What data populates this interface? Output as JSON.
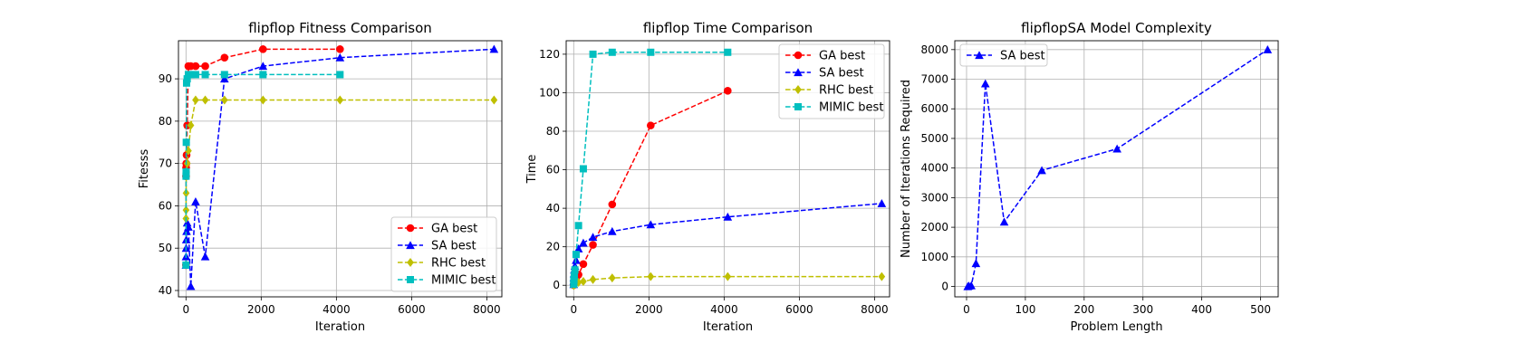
{
  "chart_data": [
    {
      "type": "line",
      "title": "flipflop Fitness Comparison",
      "xlabel": "Iteration",
      "ylabel": "Fitesss",
      "xlim": [
        -200,
        8400
      ],
      "ylim": [
        38.5,
        99
      ],
      "xticks": [
        0,
        2000,
        4000,
        6000,
        8000
      ],
      "yticks": [
        40,
        50,
        60,
        70,
        80,
        90
      ],
      "grid": true,
      "legend_position": "lower-right",
      "series": [
        {
          "name": "GA best",
          "color": "#ff0000",
          "marker": "circle",
          "x": [
            0,
            2,
            4,
            8,
            16,
            32,
            64,
            128,
            256,
            512,
            1024,
            2048,
            4096
          ],
          "y": [
            46,
            67,
            69,
            70,
            72,
            79,
            93,
            93,
            93,
            93,
            95,
            97,
            97
          ]
        },
        {
          "name": "SA best",
          "color": "#0000ff",
          "marker": "triangle",
          "x": [
            0,
            2,
            4,
            8,
            16,
            32,
            64,
            128,
            256,
            512,
            1024,
            2048,
            4096,
            8192
          ],
          "y": [
            46,
            48,
            50,
            52,
            54,
            56,
            55,
            41,
            61,
            48,
            90,
            93,
            95,
            97
          ]
        },
        {
          "name": "RHC best",
          "color": "#bfbf00",
          "marker": "diamond",
          "x": [
            0,
            2,
            4,
            8,
            16,
            32,
            64,
            128,
            256,
            512,
            1024,
            2048,
            4096,
            8192
          ],
          "y": [
            57,
            59,
            63,
            67,
            68,
            70,
            73,
            79,
            85,
            85,
            85,
            85,
            85,
            85
          ]
        },
        {
          "name": "MIMIC best",
          "color": "#00bfbf",
          "marker": "square",
          "x": [
            0,
            2,
            4,
            8,
            16,
            32,
            64,
            128,
            256,
            512,
            1024,
            2048,
            4096
          ],
          "y": [
            46,
            67,
            68,
            75,
            89,
            90,
            91,
            91,
            91,
            91,
            91,
            91,
            91
          ]
        }
      ]
    },
    {
      "type": "line",
      "title": "flipflop Time Comparison",
      "xlabel": "Iteration",
      "ylabel": "Time",
      "xlim": [
        -200,
        8400
      ],
      "ylim": [
        -6,
        127
      ],
      "xticks": [
        0,
        2000,
        4000,
        6000,
        8000
      ],
      "yticks": [
        0,
        20,
        40,
        60,
        80,
        100,
        120
      ],
      "grid": true,
      "legend_position": "upper-right",
      "series": [
        {
          "name": "GA best",
          "color": "#ff0000",
          "marker": "circle",
          "x": [
            0,
            2,
            4,
            8,
            16,
            32,
            64,
            128,
            256,
            512,
            1024,
            2048,
            4096
          ],
          "y": [
            0.1,
            0.3,
            0.5,
            0.8,
            1.0,
            2.0,
            3.5,
            5.5,
            11,
            21,
            42,
            83,
            101
          ]
        },
        {
          "name": "SA best",
          "color": "#0000ff",
          "marker": "triangle",
          "x": [
            0,
            2,
            4,
            8,
            16,
            32,
            64,
            128,
            256,
            512,
            1024,
            2048,
            4096,
            8192
          ],
          "y": [
            0.5,
            2,
            4,
            6,
            8,
            10,
            13,
            19,
            22,
            25,
            28,
            31.5,
            35.5,
            42.5
          ]
        },
        {
          "name": "RHC best",
          "color": "#bfbf00",
          "marker": "diamond",
          "x": [
            0,
            2,
            4,
            8,
            16,
            32,
            64,
            128,
            256,
            512,
            1024,
            2048,
            4096,
            8192
          ],
          "y": [
            0,
            0,
            0,
            0.2,
            0.3,
            0.5,
            1,
            1.5,
            2,
            3,
            3.8,
            4.5,
            4.5,
            4.5
          ]
        },
        {
          "name": "MIMIC best",
          "color": "#00bfbf",
          "marker": "square",
          "x": [
            0,
            2,
            4,
            8,
            16,
            32,
            64,
            128,
            256,
            512,
            1024,
            2048,
            4096
          ],
          "y": [
            0.5,
            1,
            2,
            3,
            5,
            8,
            16,
            31,
            60.5,
            120,
            121,
            121,
            121
          ]
        }
      ]
    },
    {
      "type": "line",
      "title": "flipflopSA Model Complexity",
      "xlabel": "Problem Length",
      "ylabel": "Number of Iterations Required",
      "xlim": [
        -20,
        530
      ],
      "ylim": [
        -350,
        8300
      ],
      "xticks": [
        0,
        100,
        200,
        300,
        400,
        500
      ],
      "yticks": [
        0,
        1000,
        2000,
        3000,
        4000,
        5000,
        6000,
        7000,
        8000
      ],
      "grid": true,
      "legend_position": "upper-left",
      "series": [
        {
          "name": "SA best",
          "color": "#0000ff",
          "marker": "triangle",
          "x": [
            2,
            4,
            8,
            16,
            32,
            64,
            128,
            256,
            512
          ],
          "y": [
            0,
            20,
            30,
            780,
            6850,
            2180,
            3920,
            4650,
            8000
          ]
        }
      ]
    }
  ]
}
